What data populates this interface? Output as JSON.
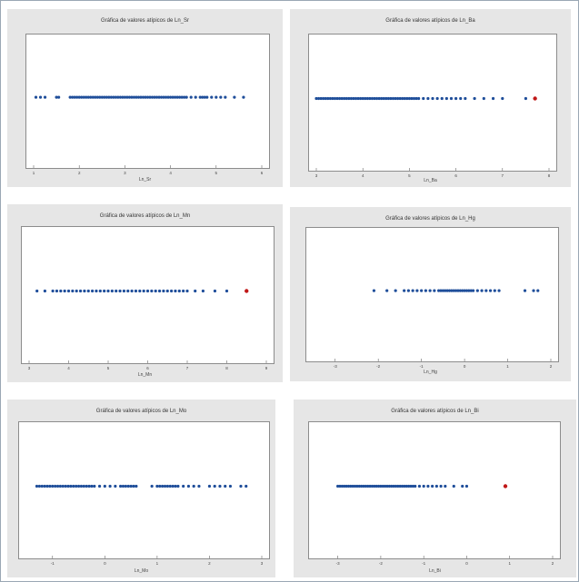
{
  "chart_data": [
    {
      "type": "scatter",
      "title": "Gráfica de valores atípicos de Ln_Sr",
      "xlabel": "Ln_Sr",
      "xlim": [
        1,
        6
      ],
      "ticks": [
        "1",
        "2",
        "3",
        "4",
        "5",
        "6"
      ],
      "points": [
        1.05,
        1.15,
        1.25,
        1.5,
        1.55,
        1.8,
        1.85,
        1.9,
        1.95,
        2.0,
        2.05,
        2.1,
        2.15,
        2.2,
        2.25,
        2.3,
        2.35,
        2.4,
        2.45,
        2.5,
        2.55,
        2.6,
        2.65,
        2.7,
        2.75,
        2.8,
        2.85,
        2.9,
        2.95,
        3.0,
        3.05,
        3.1,
        3.15,
        3.2,
        3.25,
        3.3,
        3.35,
        3.4,
        3.45,
        3.5,
        3.55,
        3.6,
        3.65,
        3.7,
        3.75,
        3.8,
        3.85,
        3.9,
        3.95,
        4.0,
        4.05,
        4.1,
        4.15,
        4.2,
        4.25,
        4.3,
        4.35,
        4.45,
        4.55,
        4.65,
        4.7,
        4.75,
        4.8,
        4.9,
        5.0,
        5.1,
        5.2,
        5.4,
        5.6
      ],
      "outliers": []
    },
    {
      "type": "scatter",
      "title": "Gráfica de valores atípicos de Ln_Ba",
      "xlabel": "Ln_Ba",
      "xlim": [
        3,
        8
      ],
      "ticks": [
        "3",
        "4",
        "5",
        "6",
        "7",
        "8"
      ],
      "points": [
        3.0,
        3.05,
        3.1,
        3.15,
        3.2,
        3.25,
        3.3,
        3.35,
        3.4,
        3.45,
        3.5,
        3.55,
        3.6,
        3.65,
        3.7,
        3.75,
        3.8,
        3.85,
        3.9,
        3.95,
        4.0,
        4.05,
        4.1,
        4.15,
        4.2,
        4.25,
        4.3,
        4.35,
        4.4,
        4.45,
        4.5,
        4.55,
        4.6,
        4.65,
        4.7,
        4.75,
        4.8,
        4.85,
        4.9,
        4.95,
        5.0,
        5.05,
        5.1,
        5.15,
        5.2,
        5.3,
        5.4,
        5.5,
        5.6,
        5.7,
        5.8,
        5.9,
        6.0,
        6.1,
        6.2,
        6.4,
        6.6,
        6.8,
        7.0,
        7.5
      ],
      "outliers": [
        7.7
      ]
    },
    {
      "type": "scatter",
      "title": "Gráfica de valores atípicos de Ln_Mn",
      "xlabel": "Ln_Mn",
      "xlim": [
        3,
        9
      ],
      "ticks": [
        "3",
        "4",
        "5",
        "6",
        "7",
        "8",
        "9"
      ],
      "points": [
        3.2,
        3.4,
        3.6,
        3.7,
        3.8,
        3.9,
        4.0,
        4.1,
        4.2,
        4.3,
        4.4,
        4.5,
        4.6,
        4.7,
        4.8,
        4.9,
        5.0,
        5.1,
        5.2,
        5.3,
        5.4,
        5.5,
        5.6,
        5.7,
        5.8,
        5.9,
        6.0,
        6.1,
        6.2,
        6.3,
        6.4,
        6.5,
        6.6,
        6.7,
        6.8,
        6.9,
        7.0,
        7.2,
        7.4,
        7.7,
        8.0
      ],
      "outliers": [
        8.5
      ]
    },
    {
      "type": "scatter",
      "title": "Gráfica de valores atípicos de Ln_Hg",
      "xlabel": "Ln_Hg",
      "xlim": [
        -3.5,
        2
      ],
      "ticks": [
        "-3",
        "-2",
        "-1",
        "0",
        "1",
        "2"
      ],
      "points": [
        -2.1,
        -1.8,
        -1.6,
        -1.4,
        -1.3,
        -1.2,
        -1.1,
        -1.0,
        -0.9,
        -0.8,
        -0.7,
        -0.6,
        -0.55,
        -0.5,
        -0.45,
        -0.4,
        -0.35,
        -0.3,
        -0.25,
        -0.2,
        -0.15,
        -0.1,
        -0.05,
        0.0,
        0.05,
        0.1,
        0.15,
        0.2,
        0.3,
        0.4,
        0.5,
        0.6,
        0.7,
        0.8,
        1.4,
        1.6,
        1.7
      ],
      "outliers": []
    },
    {
      "type": "scatter",
      "title": "Gráfica de valores atípicos de Ln_Mo",
      "xlabel": "Ln_Mo",
      "xlim": [
        -1.5,
        3
      ],
      "ticks": [
        "-1",
        "0",
        "1",
        "2",
        "3"
      ],
      "points": [
        -1.3,
        -1.25,
        -1.2,
        -1.15,
        -1.1,
        -1.05,
        -1.0,
        -0.95,
        -0.9,
        -0.85,
        -0.8,
        -0.75,
        -0.7,
        -0.65,
        -0.6,
        -0.55,
        -0.5,
        -0.45,
        -0.4,
        -0.35,
        -0.3,
        -0.25,
        -0.2,
        -0.1,
        0.0,
        0.1,
        0.2,
        0.3,
        0.35,
        0.4,
        0.45,
        0.5,
        0.55,
        0.6,
        0.9,
        1.0,
        1.05,
        1.1,
        1.15,
        1.2,
        1.25,
        1.3,
        1.35,
        1.4,
        1.5,
        1.6,
        1.7,
        1.8,
        2.0,
        2.1,
        2.2,
        2.3,
        2.4,
        2.6,
        2.7
      ],
      "outliers": []
    },
    {
      "type": "scatter",
      "title": "Gráfica de valores atípicos de Ln_Bi",
      "xlabel": "Ln_Bi",
      "xlim": [
        -3.5,
        2
      ],
      "ticks": [
        "-3",
        "-2",
        "-1",
        "0",
        "1",
        "2"
      ],
      "points": [
        -3.0,
        -2.95,
        -2.9,
        -2.85,
        -2.8,
        -2.75,
        -2.7,
        -2.65,
        -2.6,
        -2.55,
        -2.5,
        -2.45,
        -2.4,
        -2.35,
        -2.3,
        -2.25,
        -2.2,
        -2.15,
        -2.1,
        -2.05,
        -2.0,
        -1.95,
        -1.9,
        -1.85,
        -1.8,
        -1.75,
        -1.7,
        -1.65,
        -1.6,
        -1.55,
        -1.5,
        -1.45,
        -1.4,
        -1.35,
        -1.3,
        -1.25,
        -1.2,
        -1.1,
        -1.0,
        -0.9,
        -0.8,
        -0.7,
        -0.6,
        -0.5,
        -0.3,
        -0.1,
        0.0
      ],
      "outliers": [
        0.9
      ]
    }
  ],
  "colors": {
    "point": "#1f4e9a",
    "outlier": "#c01818",
    "panel": "#e6e6e6"
  }
}
